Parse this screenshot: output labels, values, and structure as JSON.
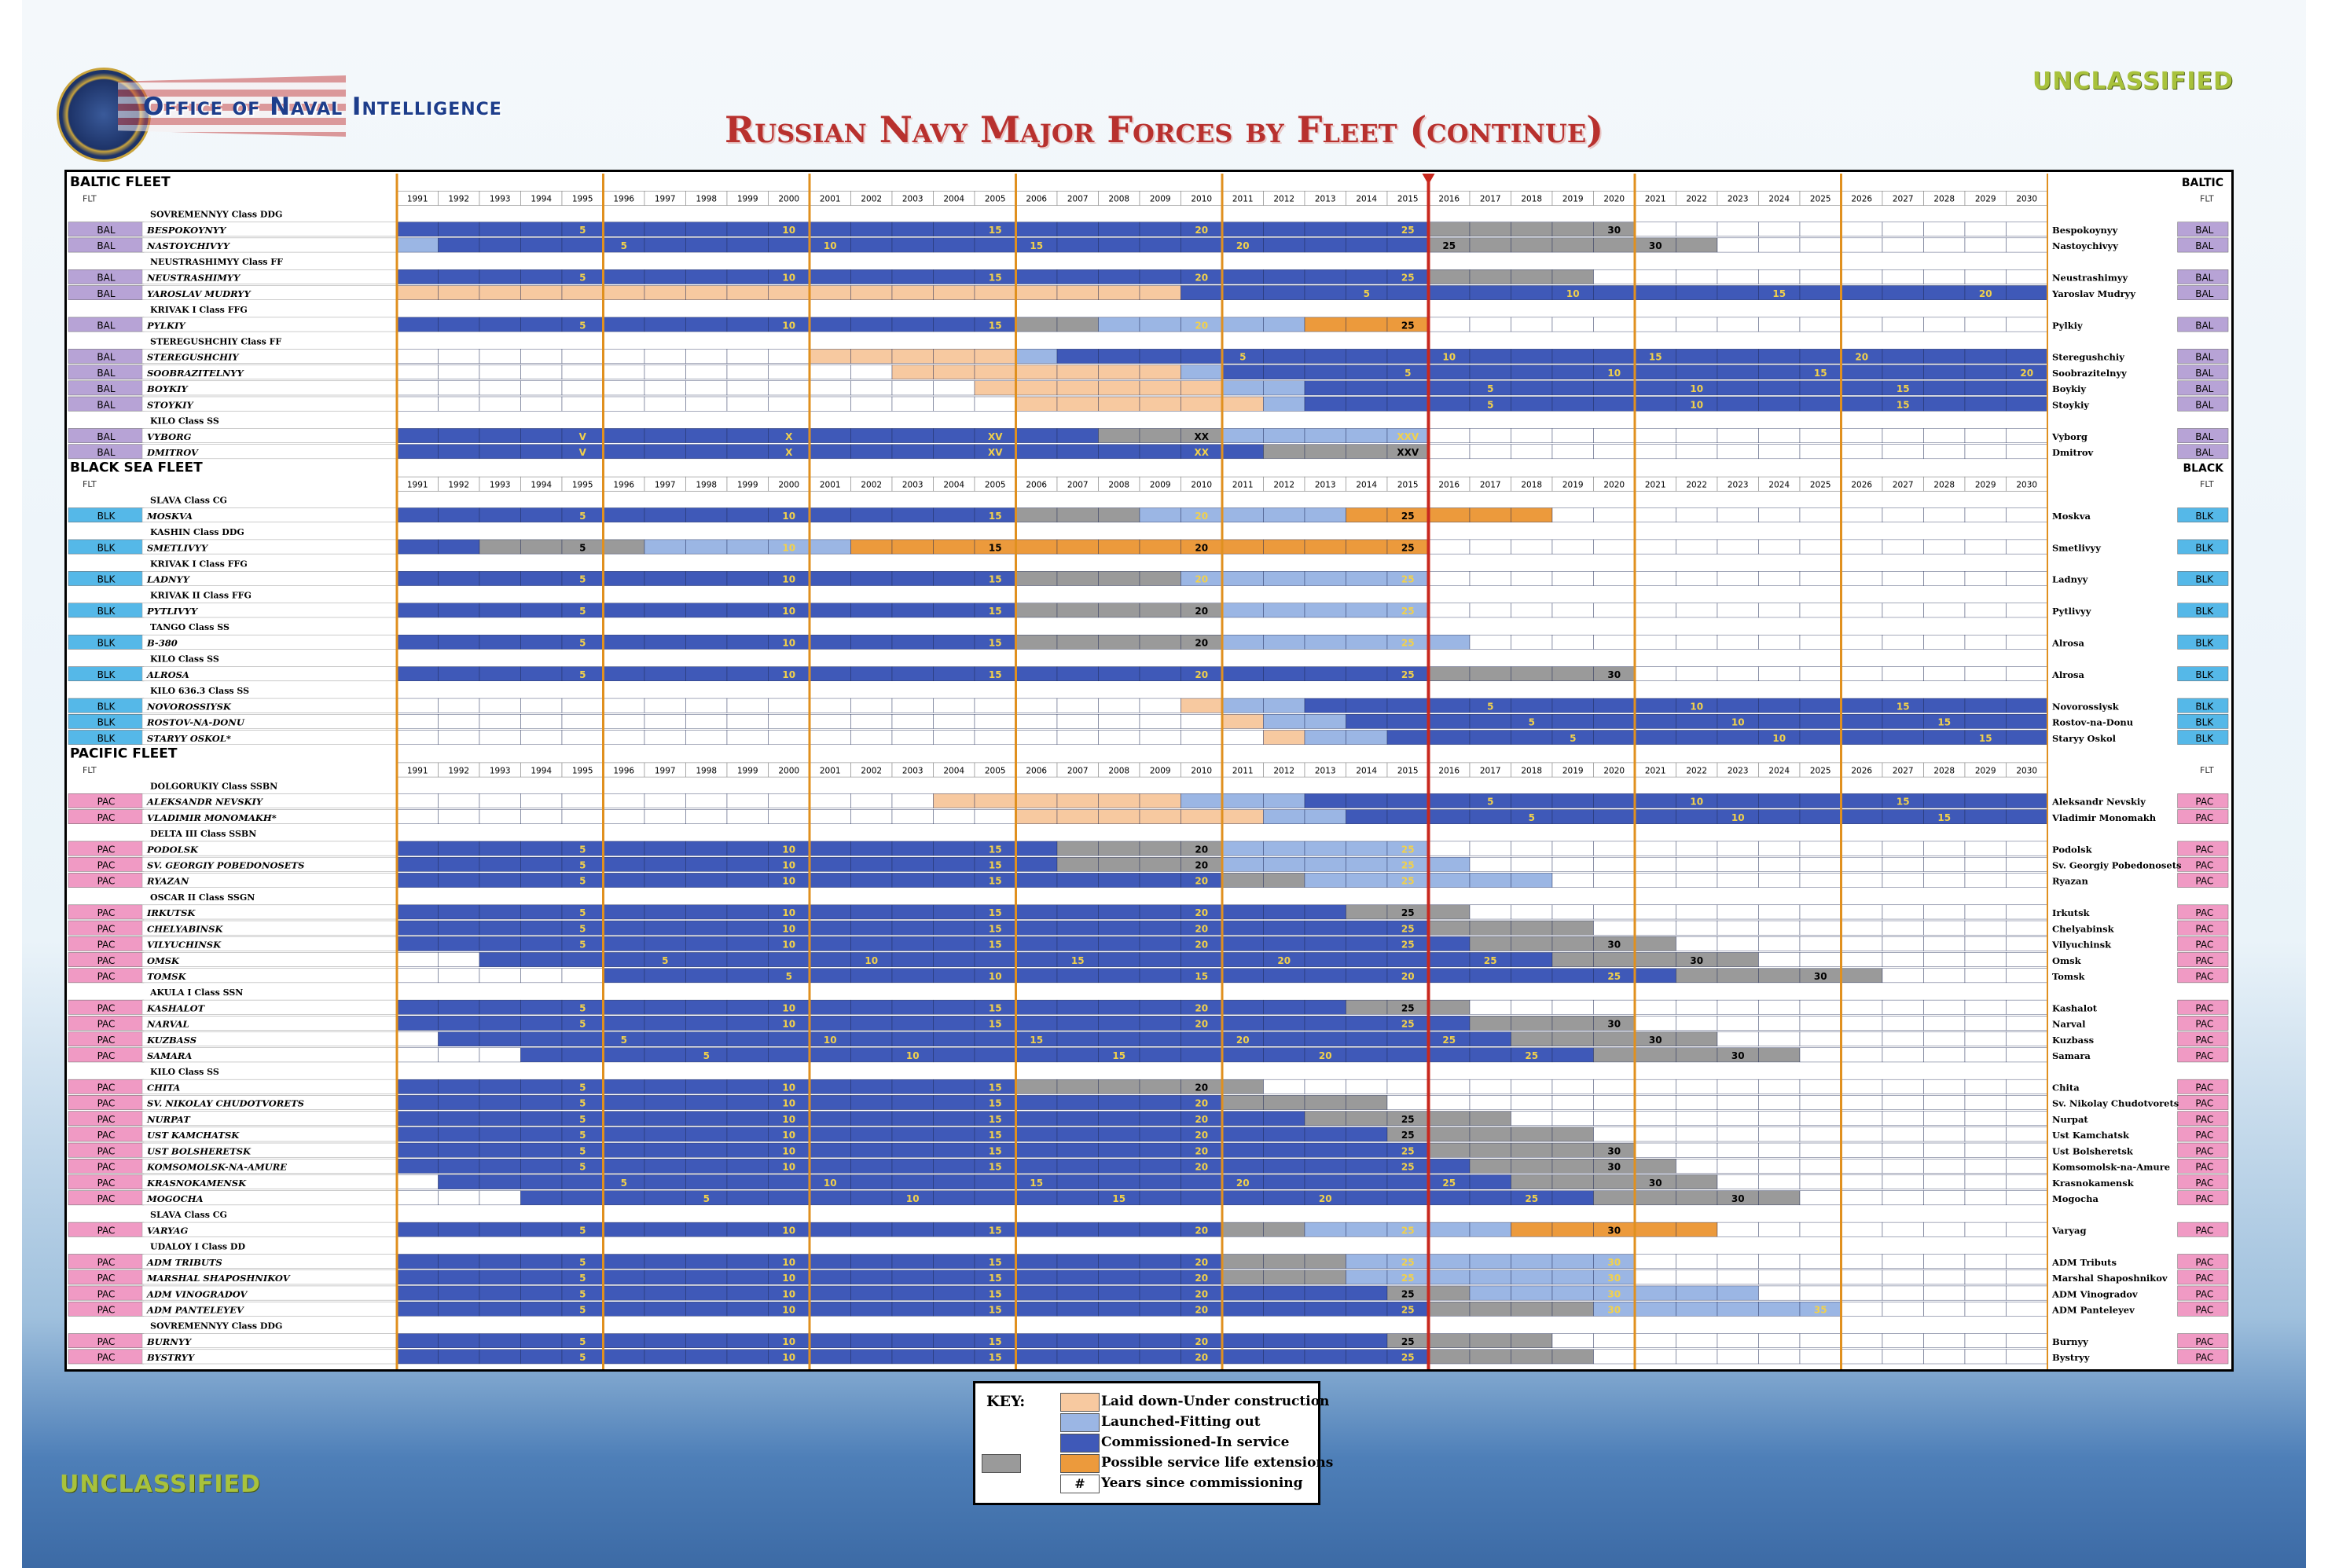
{
  "header": {
    "agency": "Office of Naval Intelligence",
    "title": "Russian Navy Major Forces by Fleet (continue)",
    "classification": "UNCLASSIFIED"
  },
  "colors": {
    "laid_down": "#f7c9a0",
    "launched": "#9bb6e4",
    "commissioned": "#3f59b8",
    "extension_possible": "#9a9a9a",
    "extension_orange": "#ec9a3c",
    "future": "#ffffff",
    "fleet_BAL": "#b7a3d6",
    "fleet_BLK": "#55b8e8",
    "fleet_PAC": "#f09ac4",
    "now_line": "#c8281e",
    "decade_line": "#e0901f"
  },
  "key": {
    "title": "KEY:",
    "items": [
      {
        "color": "#f7c9a0",
        "label": "Laid down-Under construction"
      },
      {
        "color": "#9bb6e4",
        "label": "Launched-Fitting out"
      },
      {
        "color": "#3f59b8",
        "label": "Commissioned-In service"
      },
      {
        "color": "#ec9a3c",
        "label": "Possible service life extensions",
        "extra": "#9a9a9a"
      },
      {
        "color": "#ffffff",
        "label": "Years since commissioning",
        "symbol": "#"
      }
    ]
  },
  "chart_data": {
    "type": "table",
    "years": [
      1991,
      1992,
      1993,
      1994,
      1995,
      1996,
      1997,
      1998,
      1999,
      2000,
      2001,
      2002,
      2003,
      2004,
      2005,
      2006,
      2007,
      2008,
      2009,
      2010,
      2011,
      2012,
      2013,
      2014,
      2015,
      2016,
      2017,
      2018,
      2019,
      2020,
      2021,
      2022,
      2023,
      2024,
      2025,
      2026,
      2027,
      2028,
      2029,
      2030
    ],
    "current_year": 2015,
    "flt_label": "FLT",
    "fleets": [
      {
        "name": "BALTIC FLEET",
        "tag": "BALTIC",
        "code": "BAL",
        "groups": [
          {
            "class": "SOVREMENNYY Class DDG",
            "ships": [
              {
                "name": "BESPOKOYNYY",
                "alt": "Bespokoynyy",
                "laid": null,
                "launch": null,
                "comm": 1991,
                "svc_end": 2015,
                "ext_end": 2020
              },
              {
                "name": "NASTOYCHIVYY",
                "alt": "Nastoychivyy",
                "laid": null,
                "launch": 1991,
                "comm": 1992,
                "svc_end": 2015,
                "ext_end": 2022
              }
            ]
          },
          {
            "class": "NEUSTRASHIMYY Class FF",
            "ships": [
              {
                "name": "NEUSTRASHIMYY",
                "alt": "Neustrashimyy",
                "laid": null,
                "launch": null,
                "comm": 1991,
                "svc_end": 2015,
                "ext_end": 2019
              },
              {
                "name": "YAROSLAV MUDRYY",
                "alt": "Yaroslav Mudryy",
                "laid": 1991,
                "launch": null,
                "comm": 2010,
                "svc_end": 2030,
                "ext_end": null
              }
            ]
          },
          {
            "class": "KRIVAK I Class FFG",
            "ships": [
              {
                "name": "PYLKIY",
                "alt": "Pylkiy",
                "laid": null,
                "launch": null,
                "comm": 1991,
                "svc_end": 2005,
                "ext_end": 2008,
                "ext_launch": [
                  2008,
                  2013
                ],
                "ext_orange": [
                  2013,
                  2015
                ]
              }
            ]
          },
          {
            "class": "STEREGUSHCHIY Class FF",
            "ships": [
              {
                "name": "STEREGUSHCHIY",
                "alt": "Steregushchiy",
                "laid": 2001,
                "launch": 2006,
                "comm": 2007,
                "svc_end": 2030,
                "ext_end": null
              },
              {
                "name": "SOOBRAZITELNYY",
                "alt": "Soobrazitelnyy",
                "laid": 2003,
                "launch": 2010,
                "comm": 2011,
                "svc_end": 2030,
                "ext_end": null
              },
              {
                "name": "BOYKIY",
                "alt": "Boykiy",
                "laid": 2005,
                "launch": 2011,
                "comm": 2013,
                "svc_end": 2030,
                "ext_end": null
              },
              {
                "name": "STOYKIY",
                "alt": "Stoykiy",
                "laid": 2006,
                "launch": 2012,
                "comm": 2013,
                "svc_end": 2030,
                "ext_end": null
              }
            ]
          },
          {
            "class": "KILO Class SS",
            "ships": [
              {
                "name": "VYBORG",
                "alt": "Vyborg",
                "laid": null,
                "launch": null,
                "comm": 1991,
                "svc_end": 2007,
                "ext_end": 2011,
                "ext_launch": [
                  2011,
                  2015
                ],
                "roman": true
              },
              {
                "name": "DMITROV",
                "alt": "Dmitrov",
                "laid": null,
                "launch": null,
                "comm": 1991,
                "svc_end": 2011,
                "ext_end": 2015,
                "roman": true
              }
            ]
          }
        ]
      },
      {
        "name": "BLACK SEA FLEET",
        "tag": "BLACK",
        "code": "BLK",
        "groups": [
          {
            "class": "SLAVA Class CG",
            "ships": [
              {
                "name": "MOSKVA",
                "alt": "Moskva",
                "laid": null,
                "launch": null,
                "comm": 1991,
                "svc_end": 2005,
                "ext_end": 2009,
                "ext_launch": [
                  2009,
                  2014
                ],
                "ext_orange": [
                  2014,
                  2018
                ]
              }
            ]
          },
          {
            "class": "KASHIN Class DDG",
            "ships": [
              {
                "name": "SMETLIVYY",
                "alt": "Smetlivyy",
                "laid": null,
                "launch": null,
                "comm": 1991,
                "svc_end": 1992,
                "ext_end": 1997,
                "ext_launch": [
                  1997,
                  2002
                ],
                "ext_orange": [
                  2002,
                  2015
                ]
              }
            ]
          },
          {
            "class": "KRIVAK I Class FFG",
            "ships": [
              {
                "name": "LADNYY",
                "alt": "Ladnyy",
                "laid": null,
                "launch": null,
                "comm": 1991,
                "svc_end": 2005,
                "ext_end": 2010,
                "ext_launch": [
                  2010,
                  2015
                ]
              }
            ]
          },
          {
            "class": "KRIVAK II Class FFG",
            "ships": [
              {
                "name": "PYTLIVYY",
                "alt": "Pytlivyy",
                "laid": null,
                "launch": null,
                "comm": 1991,
                "svc_end": 2005,
                "ext_end": 2011,
                "ext_launch": [
                  2011,
                  2015
                ]
              }
            ]
          },
          {
            "class": "TANGO Class SS",
            "ships": [
              {
                "name": "B-380",
                "alt": "Alrosa",
                "laid": null,
                "launch": null,
                "comm": 1991,
                "svc_end": 2005,
                "ext_end": 2011,
                "ext_launch": [
                  2011,
                  2016
                ]
              }
            ]
          },
          {
            "class": "KILO Class SS",
            "ships": [
              {
                "name": "ALROSA",
                "alt": "Alrosa",
                "laid": null,
                "launch": null,
                "comm": 1991,
                "svc_end": 2015,
                "ext_end": 2020
              }
            ]
          },
          {
            "class": "KILO 636.3 Class SS",
            "ships": [
              {
                "name": "NOVOROSSIYSK",
                "alt": "Novorossiysk",
                "laid": 2010,
                "launch": 2011,
                "comm": 2013,
                "svc_end": 2030,
                "ext_end": null
              },
              {
                "name": "ROSTOV-NA-DONU",
                "alt": "Rostov-na-Donu",
                "laid": 2011,
                "launch": 2012,
                "comm": 2014,
                "svc_end": 2030,
                "ext_end": null
              },
              {
                "name": "STARYY OSKOL*",
                "alt": "Staryy Oskol",
                "laid": 2012,
                "launch": 2013,
                "comm": 2015,
                "svc_end": 2030,
                "ext_end": null
              }
            ]
          }
        ]
      },
      {
        "name": "PACIFIC FLEET",
        "tag": "",
        "code": "PAC",
        "groups": [
          {
            "class": "DOLGORUKIY Class SSBN",
            "ships": [
              {
                "name": "ALEKSANDR NEVSKIY",
                "alt": "Aleksandr Nevskiy",
                "laid": 2004,
                "launch": 2010,
                "comm": 2013,
                "svc_end": 2030,
                "ext_end": null
              },
              {
                "name": "VLADIMIR MONOMAKH*",
                "alt": "Vladimir Monomakh",
                "laid": 2006,
                "launch": 2012,
                "comm": 2014,
                "svc_end": 2030,
                "ext_end": null
              }
            ]
          },
          {
            "class": "DELTA III Class SSBN",
            "ships": [
              {
                "name": "PODOLSK",
                "alt": "Podolsk",
                "laid": null,
                "launch": null,
                "comm": 1991,
                "svc_end": 2006,
                "ext_end": 2011,
                "ext_launch": [
                  2011,
                  2015
                ]
              },
              {
                "name": "SV. GEORGIY POBEDONOSETS",
                "alt": "Sv. Georgiy Pobedonosets",
                "laid": null,
                "launch": null,
                "comm": 1991,
                "svc_end": 2006,
                "ext_end": 2011,
                "ext_launch": [
                  2011,
                  2016
                ]
              },
              {
                "name": "RYAZAN",
                "alt": "Ryazan",
                "laid": null,
                "launch": null,
                "comm": 1991,
                "svc_end": 2010,
                "ext_end": 2013,
                "ext_launch": [
                  2013,
                  2018
                ]
              }
            ]
          },
          {
            "class": "OSCAR II Class SSGN",
            "ships": [
              {
                "name": "IRKUTSK",
                "alt": "Irkutsk",
                "laid": null,
                "launch": null,
                "comm": 1991,
                "svc_end": 2013,
                "ext_end": 2016
              },
              {
                "name": "CHELYABINSK",
                "alt": "Chelyabinsk",
                "laid": null,
                "launch": null,
                "comm": 1991,
                "svc_end": 2015,
                "ext_end": 2019
              },
              {
                "name": "VILYUCHINSK",
                "alt": "Vilyuchinsk",
                "laid": null,
                "launch": null,
                "comm": 1991,
                "svc_end": 2016,
                "ext_end": 2021
              },
              {
                "name": "OMSK",
                "alt": "Omsk",
                "laid": null,
                "launch": null,
                "comm": 1993,
                "svc_end": 2018,
                "ext_end": 2023
              },
              {
                "name": "TOMSK",
                "alt": "Tomsk",
                "laid": null,
                "launch": null,
                "comm": 1996,
                "svc_end": 2021,
                "ext_end": 2026
              }
            ]
          },
          {
            "class": "AKULA I Class SSN",
            "ships": [
              {
                "name": "KASHALOT",
                "alt": "Kashalot",
                "laid": null,
                "launch": null,
                "comm": 1991,
                "svc_end": 2013,
                "ext_end": 2016
              },
              {
                "name": "NARVAL",
                "alt": "Narval",
                "laid": null,
                "launch": null,
                "comm": 1991,
                "svc_end": 2016,
                "ext_end": 2020
              },
              {
                "name": "KUZBASS",
                "alt": "Kuzbass",
                "laid": null,
                "launch": null,
                "comm": 1992,
                "svc_end": 2017,
                "ext_end": 2022
              },
              {
                "name": "SAMARA",
                "alt": "Samara",
                "laid": null,
                "launch": null,
                "comm": 1994,
                "svc_end": 2019,
                "ext_end": 2024
              }
            ]
          },
          {
            "class": "KILO Class SS",
            "ships": [
              {
                "name": "CHITA",
                "alt": "Chita",
                "laid": null,
                "launch": null,
                "comm": 1991,
                "svc_end": 2005,
                "ext_end": 2011
              },
              {
                "name": "SV. NIKOLAY CHUDOTVORETS",
                "alt": "Sv. Nikolay Chudotvorets",
                "laid": null,
                "launch": null,
                "comm": 1991,
                "svc_end": 2010,
                "ext_end": 2014
              },
              {
                "name": "NURPAT",
                "alt": "Nurpat",
                "laid": null,
                "launch": null,
                "comm": 1991,
                "svc_end": 2012,
                "ext_end": 2017
              },
              {
                "name": "UST KAMCHATSK",
                "alt": "Ust Kamchatsk",
                "laid": null,
                "launch": null,
                "comm": 1991,
                "svc_end": 2014,
                "ext_end": 2019
              },
              {
                "name": "UST BOLSHERETSK",
                "alt": "Ust Bolsheretsk",
                "laid": null,
                "launch": null,
                "comm": 1991,
                "svc_end": 2015,
                "ext_end": 2020
              },
              {
                "name": "KOMSOMOLSK-NA-AMURE",
                "alt": "Komsomolsk-na-Amure",
                "laid": null,
                "launch": null,
                "comm": 1991,
                "svc_end": 2016,
                "ext_end": 2021
              },
              {
                "name": "KRASNOKAMENSK",
                "alt": "Krasnokamensk",
                "laid": null,
                "launch": null,
                "comm": 1992,
                "svc_end": 2017,
                "ext_end": 2022
              },
              {
                "name": "MOGOCHA",
                "alt": "Mogocha",
                "laid": null,
                "launch": null,
                "comm": 1994,
                "svc_end": 2019,
                "ext_end": 2024
              }
            ]
          },
          {
            "class": "SLAVA Class CG",
            "ships": [
              {
                "name": "VARYAG",
                "alt": "Varyag",
                "laid": null,
                "launch": null,
                "comm": 1991,
                "svc_end": 2010,
                "ext_end": 2013,
                "ext_launch": [
                  2013,
                  2018
                ],
                "ext_orange": [
                  2018,
                  2022
                ]
              }
            ]
          },
          {
            "class": "UDALOY I Class DD",
            "ships": [
              {
                "name": "ADM TRIBUTS",
                "alt": "ADM Tributs",
                "laid": null,
                "launch": null,
                "comm": 1991,
                "svc_end": 2010,
                "ext_end": 2014,
                "ext_launch": [
                  2014,
                  2020
                ]
              },
              {
                "name": "MARSHAL SHAPOSHNIKOV",
                "alt": "Marshal Shaposhnikov",
                "laid": null,
                "launch": null,
                "comm": 1991,
                "svc_end": 2010,
                "ext_end": 2014,
                "ext_launch": [
                  2014,
                  2020
                ]
              },
              {
                "name": "ADM VINOGRADOV",
                "alt": "ADM Vinogradov",
                "laid": null,
                "launch": null,
                "comm": 1991,
                "svc_end": 2014,
                "ext_end": 2017,
                "ext_launch": [
                  2017,
                  2023
                ]
              },
              {
                "name": "ADM PANTELEYEV",
                "alt": "ADM Panteleyev",
                "laid": null,
                "launch": null,
                "comm": 1991,
                "svc_end": 2015,
                "ext_end": 2020,
                "ext_launch": [
                  2020,
                  2025
                ]
              }
            ]
          },
          {
            "class": "SOVREMENNYY Class DDG",
            "ships": [
              {
                "name": "BURNYY",
                "alt": "Burnyy",
                "laid": null,
                "launch": null,
                "comm": 1991,
                "svc_end": 2014,
                "ext_end": 2018
              },
              {
                "name": "BYSTRYY",
                "alt": "Bystryy",
                "laid": null,
                "launch": null,
                "comm": 1991,
                "svc_end": 2015,
                "ext_end": 2019
              }
            ]
          }
        ]
      }
    ]
  }
}
